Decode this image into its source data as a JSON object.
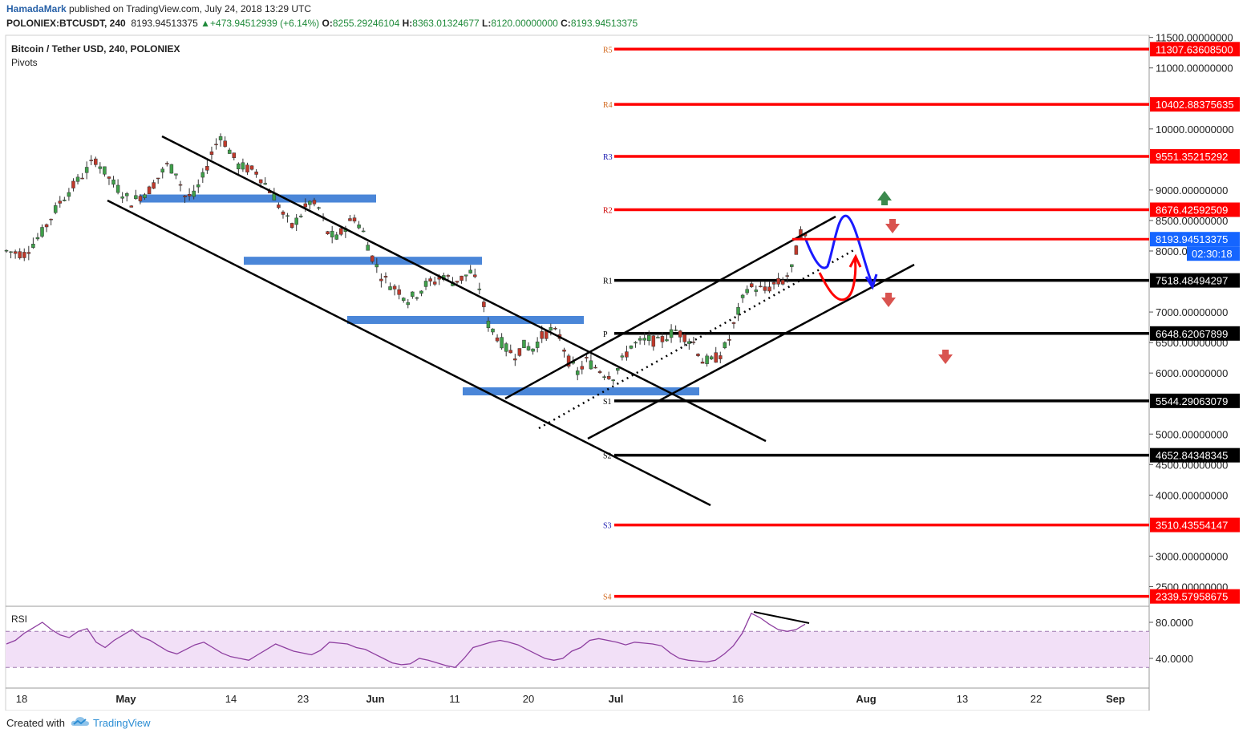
{
  "header": {
    "author": "HamadaMark",
    "published": "published on TradingView.com, July 24, 2018 13:29 UTC",
    "symbol": "POLONIEX:BTCUSDT, 240",
    "last": "8193.94513375",
    "change": "+473.94512939 (+6.14%)",
    "open_label": "O:",
    "open": "8255.29246104",
    "high_label": "H:",
    "high": "8363.01324677",
    "low_label": "L:",
    "low": "8120.00000000",
    "close_label": "C:",
    "close": "8193.94513375"
  },
  "legend": {
    "title": "Bitcoin / Tether USD, 240, POLONIEX",
    "indicator": "Pivots",
    "rsi_label": "RSI"
  },
  "footer": {
    "created_with": "Created with",
    "brand": "TradingView"
  },
  "colors": {
    "red_level": "#ff0000",
    "black_level": "#000000",
    "blue_zone": "#4a86d8",
    "up_candle": "#3fa04a",
    "down_candle": "#c0392b",
    "rsi_line": "#8e3fa0",
    "rsi_band": "#f2e0f7",
    "projection_blue": "#1a1aff",
    "projection_red": "#ff0000",
    "arrow_up": "#3c8a4e",
    "arrow_down": "#d9534f",
    "price_badge": "#1565ff"
  },
  "chart_data": {
    "type": "candlestick",
    "symbol": "BTCUSDT",
    "exchange": "POLONIEX",
    "timeframe": "240",
    "price_axis_ticks": [
      "11500.00000000",
      "11000.00000000",
      "10000.00000000",
      "9000.00000000",
      "8500.00000000",
      "8000.00000000",
      "7000.00000000",
      "6500.00000000",
      "6000.00000000",
      "5000.00000000",
      "4500.00000000",
      "4000.00000000",
      "3000.00000000",
      "2500.00000000"
    ],
    "price_axis_range": [
      2100,
      11650
    ],
    "time_axis_ticks": [
      "18",
      "May",
      "14",
      "23",
      "Jun",
      "11",
      "20",
      "Jul",
      "16",
      "Aug",
      "13",
      "22",
      "Sep"
    ],
    "pivot_levels": [
      {
        "label": "R5",
        "value": 11307.636085,
        "price_label": "11307.63608500",
        "color": "red"
      },
      {
        "label": "R4",
        "value": 10402.88375635,
        "price_label": "10402.88375635",
        "color": "red"
      },
      {
        "label": "R3",
        "value": 9551.35215292,
        "price_label": "9551.35215292",
        "color": "red"
      },
      {
        "label": "R2",
        "value": 8676.42592509,
        "price_label": "8676.42592509",
        "color": "red"
      },
      {
        "label": "R1",
        "value": 7518.48494297,
        "price_label": "7518.48494297",
        "color": "black"
      },
      {
        "label": "P",
        "value": 6648.62067899,
        "price_label": "6648.62067899",
        "color": "black"
      },
      {
        "label": "S1",
        "value": 5544.29063079,
        "price_label": "5544.29063079",
        "color": "black"
      },
      {
        "label": "S2",
        "value": 4652.84348345,
        "price_label": "4652.84348345",
        "color": "black"
      },
      {
        "label": "S3",
        "value": 3510.43554147,
        "price_label": "3510.43554147",
        "color": "red"
      },
      {
        "label": "S4",
        "value": 2339.57958675,
        "price_label": "2339.57958675",
        "color": "red"
      }
    ],
    "current_price": {
      "value": 8193.94513375,
      "label": "8193.94513375",
      "countdown": "02:30:18"
    },
    "support_resistance_zones": [
      8860,
      7840,
      6870,
      5700
    ],
    "price_path": [
      [
        0,
        8000
      ],
      [
        4,
        7950
      ],
      [
        8,
        8300
      ],
      [
        12,
        8800
      ],
      [
        16,
        9150
      ],
      [
        20,
        9500
      ],
      [
        24,
        9100
      ],
      [
        28,
        8800
      ],
      [
        32,
        9000
      ],
      [
        36,
        9400
      ],
      [
        38,
        9300
      ],
      [
        40,
        8900
      ],
      [
        42,
        8900
      ],
      [
        44,
        9200
      ],
      [
        46,
        9600
      ],
      [
        48,
        9900
      ],
      [
        52,
        9400
      ],
      [
        56,
        9300
      ],
      [
        60,
        8900
      ],
      [
        62,
        8600
      ],
      [
        64,
        8400
      ],
      [
        66,
        8600
      ],
      [
        68,
        8800
      ],
      [
        70,
        8700
      ],
      [
        72,
        8300
      ],
      [
        74,
        8200
      ],
      [
        76,
        8400
      ],
      [
        78,
        8550
      ],
      [
        80,
        8300
      ],
      [
        82,
        7900
      ],
      [
        84,
        7600
      ],
      [
        86,
        7450
      ],
      [
        88,
        7350
      ],
      [
        90,
        7200
      ],
      [
        92,
        7300
      ],
      [
        94,
        7450
      ],
      [
        96,
        7500
      ],
      [
        98,
        7600
      ],
      [
        100,
        7500
      ],
      [
        102,
        7550
      ],
      [
        104,
        7650
      ],
      [
        106,
        7400
      ],
      [
        108,
        6800
      ],
      [
        110,
        6600
      ],
      [
        112,
        6400
      ],
      [
        114,
        6300
      ],
      [
        116,
        6450
      ],
      [
        118,
        6400
      ],
      [
        120,
        6600
      ],
      [
        122,
        6700
      ],
      [
        124,
        6600
      ],
      [
        126,
        6200
      ],
      [
        128,
        6000
      ],
      [
        130,
        6200
      ],
      [
        132,
        6100
      ],
      [
        134,
        6000
      ],
      [
        136,
        5950
      ],
      [
        138,
        6200
      ],
      [
        140,
        6450
      ],
      [
        142,
        6500
      ],
      [
        144,
        6550
      ],
      [
        146,
        6500
      ],
      [
        148,
        6600
      ],
      [
        150,
        6700
      ],
      [
        152,
        6600
      ],
      [
        154,
        6500
      ],
      [
        156,
        6200
      ],
      [
        158,
        6200
      ],
      [
        160,
        6300
      ],
      [
        162,
        6550
      ],
      [
        164,
        7000
      ],
      [
        166,
        7400
      ],
      [
        168,
        7400
      ],
      [
        170,
        7350
      ],
      [
        172,
        7450
      ],
      [
        174,
        7500
      ],
      [
        176,
        7700
      ],
      [
        178,
        8300
      ],
      [
        179,
        8200
      ]
    ],
    "rsi": {
      "levels": [
        70,
        30
      ],
      "ticks": [
        "80.0000",
        "40.0000"
      ],
      "range": [
        10,
        100
      ],
      "values": [
        56,
        60,
        68,
        74,
        80,
        72,
        66,
        63,
        70,
        73,
        58,
        52,
        60,
        66,
        72,
        64,
        60,
        54,
        48,
        45,
        50,
        55,
        58,
        52,
        46,
        42,
        40,
        38,
        44,
        50,
        56,
        52,
        48,
        46,
        44,
        49,
        58,
        57,
        56,
        52,
        50,
        45,
        40,
        35,
        33,
        34,
        40,
        38,
        35,
        32,
        30,
        40,
        52,
        55,
        58,
        60,
        58,
        55,
        50,
        45,
        40,
        38,
        40,
        48,
        52,
        60,
        62,
        60,
        58,
        55,
        58,
        57,
        56,
        54,
        46,
        40,
        38,
        37,
        36,
        38,
        45,
        54,
        68,
        90,
        85,
        78,
        72,
        70,
        72,
        78
      ]
    }
  }
}
